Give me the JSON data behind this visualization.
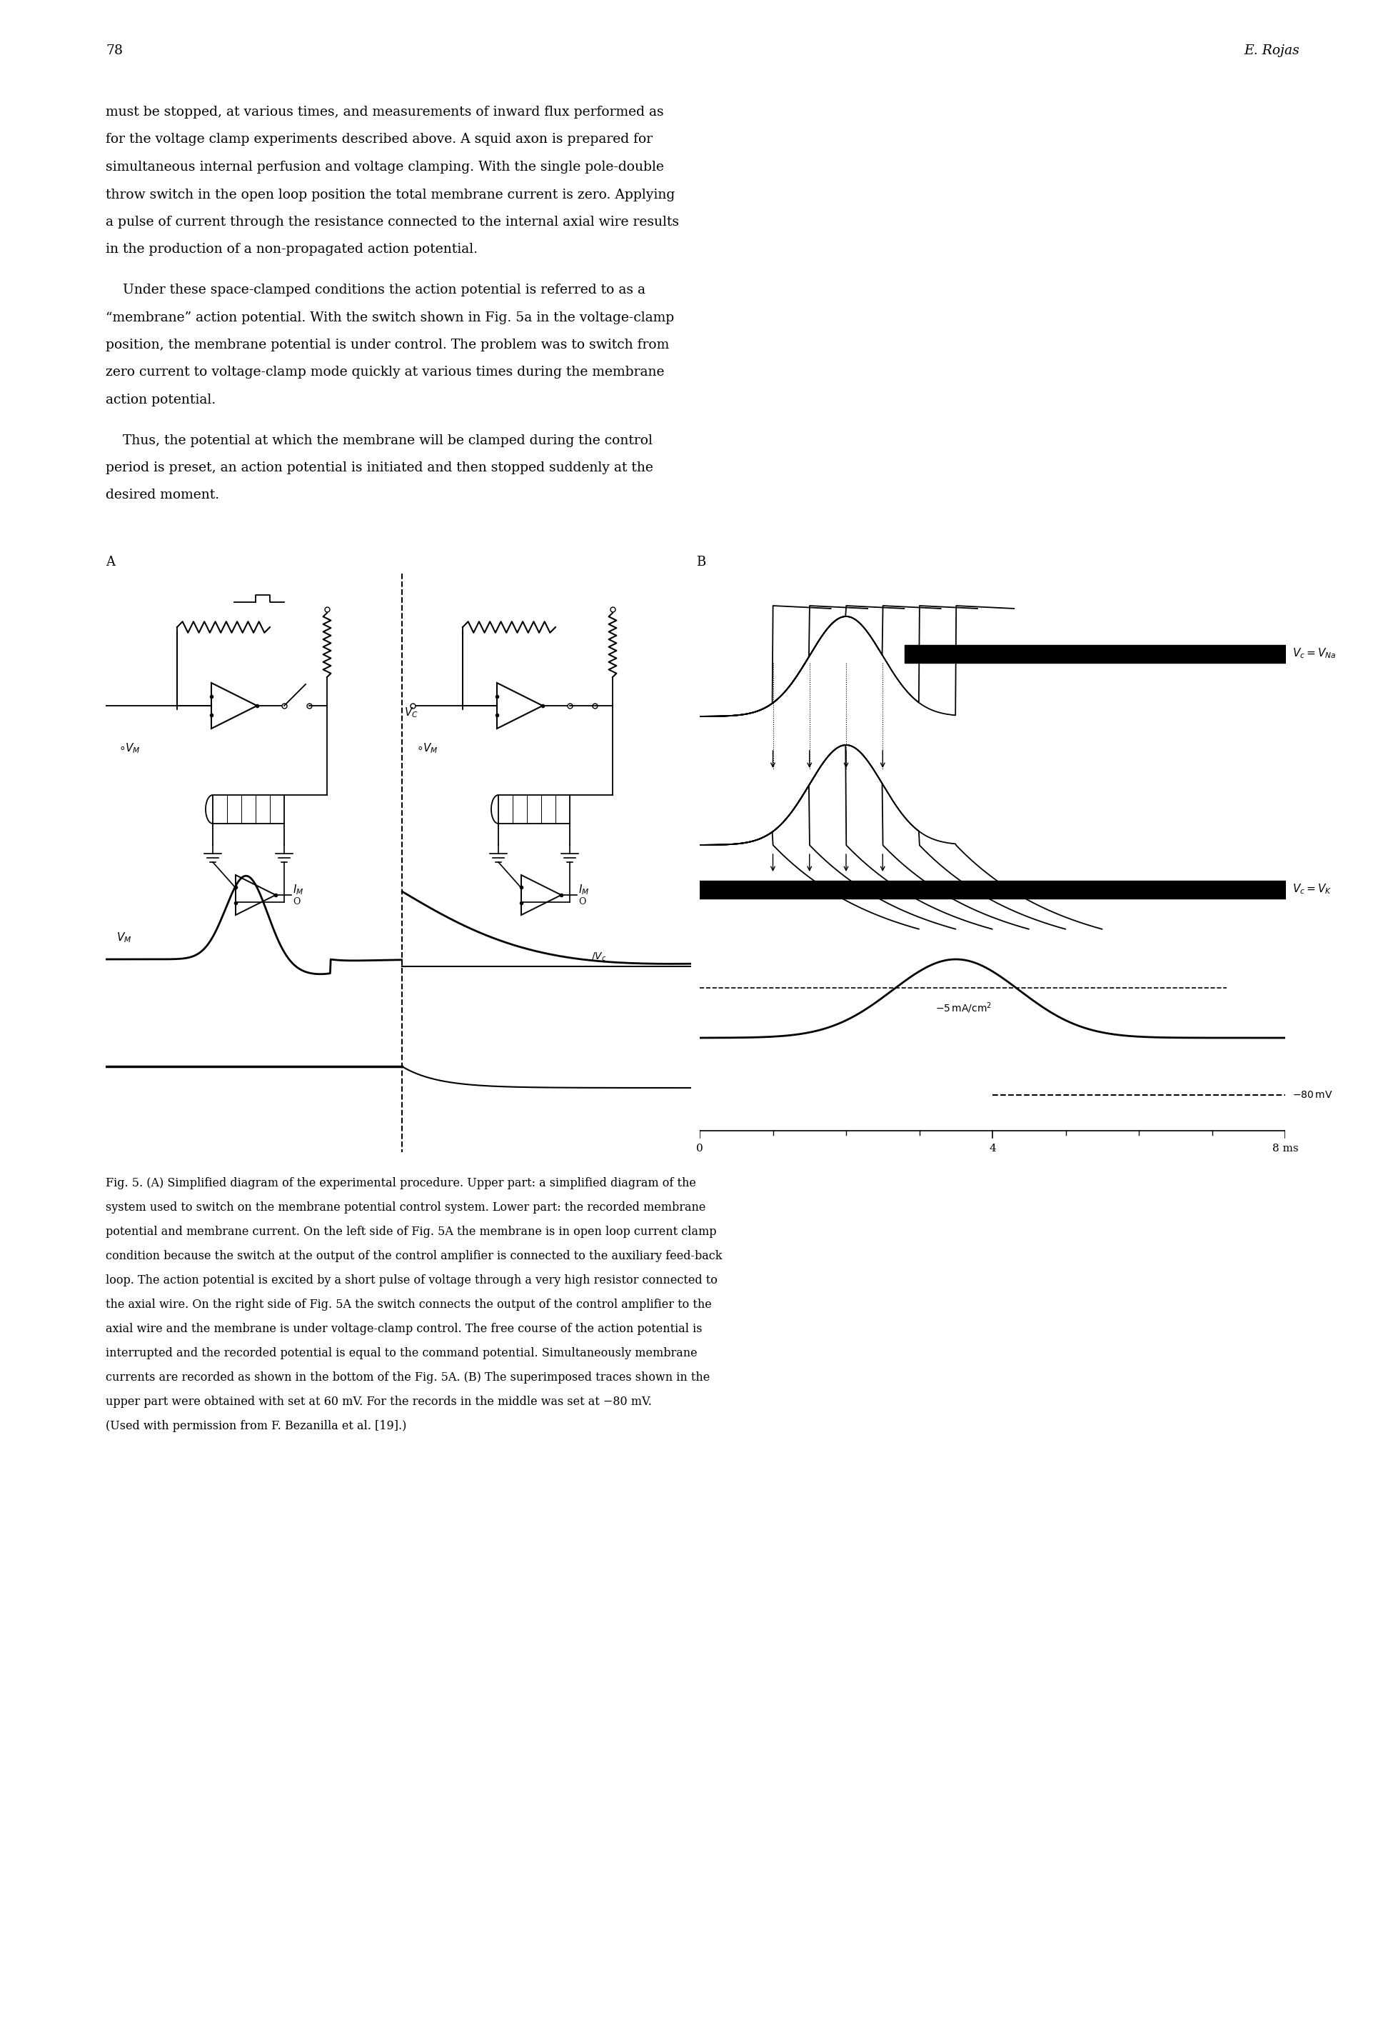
{
  "page_number": "78",
  "author": "E. Rojas",
  "paragraph1_lines": [
    "must be stopped, at various times, and measurements of inward flux performed as",
    "for the voltage clamp experiments described above. A squid axon is prepared for",
    "simultaneous internal perfusion and voltage clamping. With the single pole-double",
    "throw switch in the open loop position the total membrane current is zero. Applying",
    "a pulse of current through the resistance connected to the internal axial wire results",
    "in the production of a non-propagated action potential."
  ],
  "paragraph2_lines": [
    "    Under these space-clamped conditions the action potential is referred to as a",
    "“membrane” action potential. With the switch shown in Fig. 5a in the voltage-clamp",
    "position, the membrane potential is under control. The problem was to switch from",
    "zero current to voltage-clamp mode quickly at various times during the membrane",
    "action potential."
  ],
  "paragraph3_lines": [
    "    Thus, the potential at which the membrane will be clamped during the control",
    "period is preset, an action potential is initiated and then stopped suddenly at the",
    "desired moment."
  ],
  "caption_lines": [
    "Fig. 5. (A) Simplified diagram of the experimental procedure. Upper part: a simplified diagram of the",
    "system used to switch on the membrane potential control system. Lower part: the recorded membrane",
    "potential and membrane current. On the left side of Fig. 5A the membrane is in open loop current clamp",
    "condition because the switch at the output of the control amplifier is connected to the auxiliary feed-back",
    "loop. The action potential is excited by a short pulse of voltage through a very high resistor connected to",
    "the axial wire. On the right side of Fig. 5A the switch connects the output of the control amplifier to the",
    "axial wire and the membrane is under voltage-clamp control. The free course of the action potential is",
    "interrupted and the recorded potential is equal to the command potential. Simultaneously membrane",
    "currents are recorded as shown in the bottom of the Fig. 5A. (B) The superimposed traces shown in the",
    "upper part were obtained with set at 60 mV. For the records in the middle was set at −80 mV.",
    "(Used with permission from F. Bezanilla et al. [19].)"
  ],
  "background_color": "#ffffff",
  "text_color": "#000000",
  "text_fontsize": 13.5,
  "caption_fontsize": 11.5,
  "header_fontsize": 13.5
}
